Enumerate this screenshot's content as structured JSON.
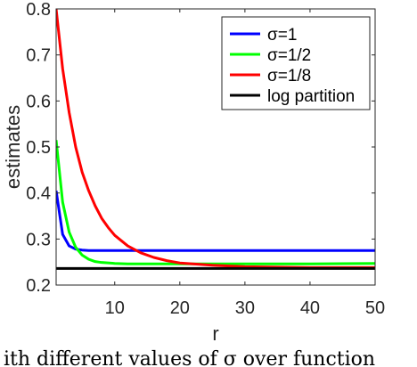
{
  "chart_data": {
    "type": "line",
    "title": "",
    "xlabel": "r",
    "ylabel": "estimates",
    "xlim": [
      1,
      50
    ],
    "ylim": [
      0.2,
      0.8
    ],
    "xticks": [
      10,
      20,
      30,
      40,
      50
    ],
    "yticks": [
      0.2,
      0.3,
      0.4,
      0.5,
      0.6,
      0.7,
      0.8
    ],
    "ytick_labels": [
      "0.2",
      "0.3",
      "0.4",
      "0.5",
      "0.6",
      "0.7",
      "0.8"
    ],
    "grid": false,
    "legend_position": "top-right",
    "series": [
      {
        "name": "σ=1",
        "color": "#0000ff",
        "x": [
          1,
          2,
          3,
          4,
          5,
          6,
          8,
          10,
          15,
          20,
          30,
          40,
          50
        ],
        "y": [
          0.405,
          0.31,
          0.285,
          0.278,
          0.276,
          0.275,
          0.275,
          0.275,
          0.275,
          0.275,
          0.275,
          0.275,
          0.275
        ]
      },
      {
        "name": "σ=1/2",
        "color": "#00ff00",
        "x": [
          1,
          2,
          3,
          4,
          5,
          6,
          7,
          8,
          10,
          12,
          15,
          20,
          30,
          40,
          50
        ],
        "y": [
          0.515,
          0.38,
          0.315,
          0.282,
          0.265,
          0.256,
          0.251,
          0.249,
          0.247,
          0.246,
          0.246,
          0.246,
          0.246,
          0.246,
          0.247
        ]
      },
      {
        "name": "σ=1/8",
        "color": "#ff0000",
        "x": [
          1,
          2,
          3,
          4,
          5,
          6,
          7,
          8,
          9,
          10,
          12,
          14,
          16,
          18,
          20,
          25,
          30,
          35,
          40,
          45,
          50
        ],
        "y": [
          0.8,
          0.67,
          0.575,
          0.5,
          0.445,
          0.405,
          0.372,
          0.345,
          0.325,
          0.308,
          0.285,
          0.27,
          0.26,
          0.253,
          0.248,
          0.243,
          0.24,
          0.239,
          0.238,
          0.238,
          0.238
        ]
      },
      {
        "name": "log partition",
        "color": "#000000",
        "x": [
          1,
          50
        ],
        "y": [
          0.236,
          0.236
        ]
      }
    ]
  },
  "caption_fragment": "ith different values of σ over function"
}
